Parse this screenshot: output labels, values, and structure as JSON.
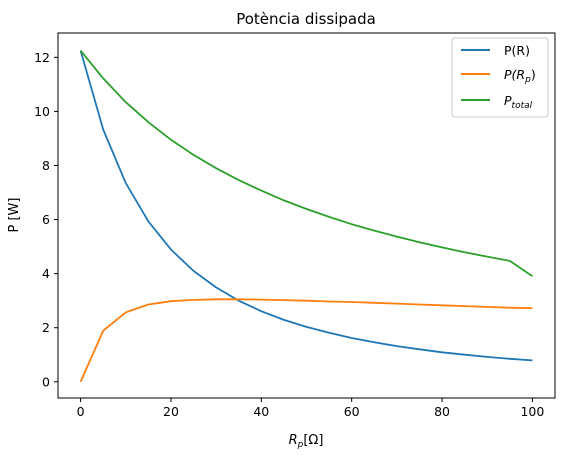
{
  "chart_data": {
    "type": "line",
    "title": "Potència dissipada",
    "xlabel": {
      "base": "R",
      "sub": "p",
      "tail": "[Ω]"
    },
    "ylabel": "P [W]",
    "xlim": [
      -5,
      105
    ],
    "ylim": [
      -0.6,
      12.9
    ],
    "xticks": [
      0,
      20,
      40,
      60,
      80,
      100
    ],
    "yticks": [
      0,
      2,
      4,
      6,
      8,
      10,
      12
    ],
    "grid": false,
    "legend_position": "top-right",
    "x": [
      0,
      5,
      10,
      15,
      20,
      25,
      30,
      35,
      40,
      45,
      50,
      55,
      60,
      65,
      70,
      75,
      80,
      85,
      90,
      95,
      100
    ],
    "series": [
      {
        "name": "P(R)",
        "color": "#1f77b4",
        "values": [
          12.25,
          9.33,
          7.35,
          5.93,
          4.89,
          4.1,
          3.49,
          3.0,
          2.61,
          2.29,
          2.03,
          1.81,
          1.62,
          1.46,
          1.32,
          1.2,
          1.09,
          1.0,
          0.92,
          0.85,
          0.79
        ]
      },
      {
        "name": "P(Rp)",
        "legend": {
          "base": "P(R",
          "sub": "p",
          "tail": ")"
        },
        "color": "#ff7f0e",
        "values": [
          0,
          1.89,
          2.57,
          2.86,
          2.98,
          3.03,
          3.05,
          3.05,
          3.04,
          3.02,
          3.0,
          2.97,
          2.95,
          2.92,
          2.89,
          2.86,
          2.83,
          2.8,
          2.77,
          2.74,
          2.72
        ]
      },
      {
        "name": "Ptotal",
        "legend": {
          "base": "P",
          "sub": "total",
          "tail": ""
        },
        "color": "#2ca02c",
        "values": [
          12.25,
          11.22,
          10.34,
          9.6,
          8.95,
          8.39,
          7.9,
          7.46,
          7.07,
          6.71,
          6.39,
          6.1,
          5.83,
          5.59,
          5.37,
          5.16,
          4.97,
          4.79,
          4.63,
          4.47,
          3.9
        ]
      }
    ]
  }
}
